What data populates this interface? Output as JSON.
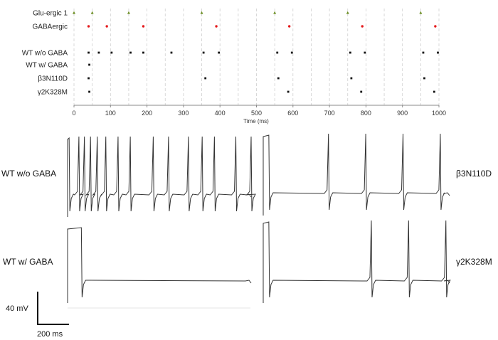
{
  "raster": {
    "xlabel": "Time (ms)",
    "xlim": [
      0,
      1000
    ],
    "xticks": [
      0,
      100,
      200,
      300,
      400,
      500,
      600,
      700,
      800,
      900,
      1000
    ],
    "grid_spacing": 50,
    "rows": [
      {
        "label": "Glu-ergic 1",
        "color": "#6b8e23",
        "marker": "triangle",
        "times": [
          0,
          50,
          150,
          350,
          550,
          750,
          950
        ]
      },
      {
        "label": "GABAergic",
        "color": "#e41a1c",
        "marker": "dot",
        "times": [
          40,
          90,
          190,
          390,
          590,
          790,
          990
        ]
      },
      {
        "label": "WT w/o GABA",
        "color": "#111111",
        "marker": "square",
        "times": [
          40,
          68,
          103,
          155,
          190,
          267,
          355,
          397,
          557,
          597,
          757,
          797,
          957,
          997
        ]
      },
      {
        "label": "WT w/ GABA",
        "color": "#111111",
        "marker": "square",
        "times": [
          42
        ]
      },
      {
        "label": "β3N110D",
        "color": "#111111",
        "marker": "square",
        "times": [
          40,
          360,
          560,
          760,
          960
        ]
      },
      {
        "label": "γ2K328M",
        "color": "#111111",
        "marker": "square",
        "times": [
          42,
          587,
          787,
          987
        ]
      }
    ]
  },
  "traces": {
    "wt_without": {
      "label": "WT w/o GABA",
      "spikes": [
        5,
        37,
        55,
        75,
        97,
        125,
        165,
        205,
        280,
        330,
        395,
        440,
        480,
        550,
        600
      ]
    },
    "wt_with": {
      "label": "WT w/ GABA",
      "spikes": [
        45
      ]
    },
    "b3": {
      "label": "β3N110D",
      "spikes": [
        30,
        350,
        550,
        750,
        950
      ]
    },
    "g2": {
      "label": "γ2K328M",
      "spikes": [
        30,
        580,
        780,
        980
      ]
    }
  },
  "scalebar": {
    "voltage": "40 mV",
    "time": "200 ms"
  }
}
